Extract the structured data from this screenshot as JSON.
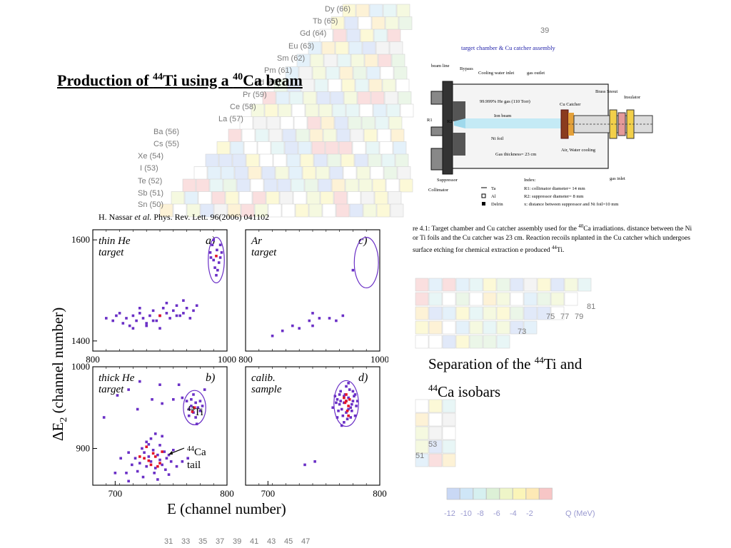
{
  "slide": {
    "title": {
      "prefix": "Production of ",
      "sup1": "44",
      "mid": "Ti using a ",
      "sup2": "40",
      "suffix": "Ca beam"
    },
    "citation": {
      "authors": "H. Nassar ",
      "etal": "et al.",
      "journal": " Phys. Rev. Lett. 96(2006) 041102"
    },
    "separation": {
      "l1a": "Separation of the ",
      "sup1": "44",
      "l1b": "Ti and",
      "sup2": "44",
      "l2b": "Ca  isobars"
    }
  },
  "nuclide_chart": {
    "element_labels": [
      "Dy (66)",
      "Tb (65)",
      "Gd (64)",
      "Eu (63)",
      "Sm (62)",
      "Pm (61)",
      "Nd (60)",
      "Pr (59)",
      "Ce (58)",
      "La (57)",
      "Ba (56)",
      "Cs (55)",
      "Xe (54)",
      "I (53)",
      "Te (52)",
      "Sb (51)",
      "Sn (50)"
    ],
    "number_labels_top": [
      "39"
    ],
    "number_labels_right": [
      "75",
      "77",
      "79",
      "81",
      "73"
    ],
    "number_labels_bottom": [
      "31",
      "33",
      "35",
      "37",
      "39",
      "41",
      "43",
      "45",
      "47"
    ],
    "number_labels_left": [
      "53",
      "51"
    ],
    "legend_labels": [
      "-12",
      "-10",
      "-8",
      "-6",
      "-4",
      "-2",
      "Q (MeV)"
    ],
    "legend_colors": [
      "#c9d8f5",
      "#cfe6f7",
      "#d6f0f0",
      "#dcf0d6",
      "#eef5c8",
      "#fbf5b8",
      "#fde9b5",
      "#f7c6c6"
    ]
  },
  "apparatus": {
    "title": "target chamber & Cu catcher assembly",
    "labels": {
      "beam_line": "beam line",
      "bypass": "Bypass",
      "cooling": "Cooling water inlet",
      "gas_outlet": "gas outlet",
      "brass": "Brass Snout",
      "insulator": "Insulator",
      "he_gas": "99.999% He gas (110 Torr)",
      "cu_catcher": "Cu Catcher",
      "ion_beam": "Ion beam",
      "r1": "R1",
      "r2": "R2",
      "ni_foil": "Ni foil",
      "air_water": "Air, Water cooling",
      "gas_thickness": "Gas thickness= 23 cm",
      "suppressor": "Suppressor",
      "collimator": "Collimator",
      "index": "Index:",
      "gas_inlet": "gas inlet"
    },
    "index_items": [
      {
        "mat": "Ta",
        "desc": "R1: collimator diameter= 14 mm"
      },
      {
        "mat": "Al",
        "desc": "R2: suppressor diameter= 8 mm"
      },
      {
        "mat": "Delrin",
        "desc": "x: distance between suppressor and Ni foil=10 mm"
      }
    ]
  },
  "caption": {
    "label": "re 4.1:",
    "t1": "  Target chamber and Cu catcher assembly used for the ",
    "sup1": "40",
    "t2": "Ca irradiations. distance between the Ni or Ti foils and the Cu catcher was 23 cm.  Reaction recoils nplanted in the Cu catcher which undergoes surface etching for chemical extraction e produced ",
    "sup2": "44",
    "t3": "Ti."
  },
  "chart_data": [
    {
      "type": "scatter",
      "panel": "a)",
      "title": "thin He target",
      "xlim": [
        800,
        1000
      ],
      "ylim": [
        1380,
        1620
      ],
      "xticks": [
        800,
        1000
      ],
      "yticks": [
        1400,
        1600
      ],
      "series": [
        {
          "color": "#6a2fc6",
          "points": [
            [
              820,
              1445
            ],
            [
              830,
              1440
            ],
            [
              835,
              1450
            ],
            [
              845,
              1435
            ],
            [
              850,
              1445
            ],
            [
              855,
              1430
            ],
            [
              860,
              1450
            ],
            [
              865,
              1440
            ],
            [
              870,
              1455
            ],
            [
              875,
              1445
            ],
            [
              880,
              1435
            ],
            [
              885,
              1450
            ],
            [
              890,
              1460
            ],
            [
              895,
              1440
            ],
            [
              900,
              1450
            ],
            [
              905,
              1465
            ],
            [
              910,
              1455
            ],
            [
              915,
              1445
            ],
            [
              920,
              1460
            ],
            [
              925,
              1470
            ],
            [
              930,
              1450
            ],
            [
              935,
              1455
            ],
            [
              940,
              1465
            ],
            [
              945,
              1445
            ],
            [
              950,
              1460
            ],
            [
              860,
              1425
            ],
            [
              880,
              1430
            ],
            [
              900,
              1425
            ],
            [
              955,
              1470
            ],
            [
              840,
              1455
            ],
            [
              870,
              1465
            ],
            [
              910,
              1475
            ],
            [
              890,
              1440
            ],
            [
              925,
              1450
            ],
            [
              935,
              1480
            ],
            [
              975,
              1575
            ],
            [
              980,
              1560
            ],
            [
              985,
              1580
            ],
            [
              990,
              1565
            ],
            [
              982,
              1545
            ],
            [
              978,
              1590
            ],
            [
              988,
              1555
            ],
            [
              992,
              1575
            ],
            [
              984,
              1530
            ],
            [
              976,
              1565
            ],
            [
              986,
              1540
            ],
            [
              990,
              1590
            ],
            [
              980,
              1600
            ]
          ]
        },
        {
          "color": "#e3142a",
          "points": [
            [
              900,
              1450
            ],
            [
              984,
              1568
            ]
          ]
        }
      ]
    },
    {
      "type": "scatter",
      "panel": "c)",
      "title": "Ar target",
      "xlim": [
        800,
        1000
      ],
      "ylim": [
        1380,
        1620
      ],
      "xticks": [
        800,
        1000
      ],
      "yticks": [],
      "series": [
        {
          "color": "#6a2fc6",
          "points": [
            [
              840,
              1410
            ],
            [
              855,
              1420
            ],
            [
              870,
              1430
            ],
            [
              880,
              1425
            ],
            [
              895,
              1440
            ],
            [
              900,
              1430
            ],
            [
              910,
              1445
            ],
            [
              925,
              1445
            ],
            [
              935,
              1440
            ],
            [
              945,
              1450
            ],
            [
              960,
              1540
            ],
            [
              900,
              1455
            ]
          ]
        }
      ]
    },
    {
      "type": "scatter",
      "panel": "b)",
      "title": "thick He target",
      "xlim": [
        680,
        800
      ],
      "ylim": [
        855,
        1000
      ],
      "xticks": [
        700,
        800
      ],
      "yticks": [
        900,
        1000
      ],
      "annotations": [
        {
          "sup": "44",
          "text": "Ti"
        },
        {
          "sup": "44",
          "text": "Ca"
        },
        {
          "sup": "",
          "text": "tail"
        }
      ],
      "series": [
        {
          "color": "#6a2fc6",
          "points": [
            [
              718,
              888
            ],
            [
              722,
              882
            ],
            [
              726,
              895
            ],
            [
              728,
              878
            ],
            [
              730,
              890
            ],
            [
              732,
              884
            ],
            [
              734,
              898
            ],
            [
              736,
              876
            ],
            [
              738,
              892
            ],
            [
              740,
              886
            ],
            [
              742,
              880
            ],
            [
              744,
              896
            ],
            [
              746,
              888
            ],
            [
              720,
              872
            ],
            [
              724,
              900
            ],
            [
              730,
              905
            ],
            [
              735,
              870
            ],
            [
              740,
              904
            ],
            [
              745,
              874
            ],
            [
              748,
              892
            ],
            [
              750,
              884
            ],
            [
              715,
              880
            ],
            [
              712,
              895
            ],
            [
              725,
              865
            ],
            [
              738,
              862
            ],
            [
              752,
              898
            ],
            [
              732,
              912
            ],
            [
              742,
              915
            ],
            [
              710,
              870
            ],
            [
              755,
              878
            ],
            [
              700,
              870
            ],
            [
              705,
              888
            ],
            [
              760,
              884
            ],
            [
              765,
              888
            ],
            [
              712,
              860
            ],
            [
              748,
              868
            ],
            [
              728,
              908
            ],
            [
              736,
              918
            ],
            [
              690,
              938
            ],
            [
              702,
              965
            ],
            [
              712,
              972
            ],
            [
              722,
              982
            ],
            [
              740,
              978
            ],
            [
              733,
              960
            ],
            [
              752,
              960
            ],
            [
              760,
              962
            ],
            [
              764,
              958
            ],
            [
              766,
              948
            ],
            [
              768,
              952
            ],
            [
              770,
              944
            ],
            [
              772,
              956
            ],
            [
              774,
              950
            ],
            [
              776,
              946
            ],
            [
              768,
              960
            ],
            [
              772,
              938
            ],
            [
              770,
              966
            ],
            [
              766,
              940
            ],
            [
              776,
              958
            ],
            [
              778,
              952
            ],
            [
              773,
              930
            ],
            [
              780,
              972
            ],
            [
              757,
              978
            ],
            [
              742,
              955
            ],
            [
              720,
              948
            ]
          ]
        },
        {
          "color": "#e3142a",
          "points": [
            [
              730,
              885
            ],
            [
              736,
              890
            ],
            [
              740,
              882
            ],
            [
              734,
              894
            ],
            [
              726,
              888
            ],
            [
              742,
              896
            ],
            [
              738,
              878
            ],
            [
              722,
              890
            ],
            [
              732,
              880
            ],
            [
              728,
              902
            ],
            [
              771,
              950
            ],
            [
              769,
              945
            ]
          ]
        }
      ]
    },
    {
      "type": "scatter",
      "panel": "d)",
      "title": "calib. sample",
      "xlim": [
        680,
        800
      ],
      "ylim": [
        855,
        1000
      ],
      "xticks": [
        700,
        800
      ],
      "yticks": [],
      "series": [
        {
          "color": "#6a2fc6",
          "points": [
            [
              762,
              960
            ],
            [
              764,
              954
            ],
            [
              766,
              948
            ],
            [
              768,
              956
            ],
            [
              770,
              944
            ],
            [
              772,
              962
            ],
            [
              774,
              950
            ],
            [
              776,
              958
            ],
            [
              765,
              970
            ],
            [
              767,
              940
            ],
            [
              769,
              966
            ],
            [
              771,
              936
            ],
            [
              773,
              972
            ],
            [
              775,
              946
            ],
            [
              777,
              964
            ],
            [
              763,
              946
            ],
            [
              761,
              956
            ],
            [
              779,
              952
            ],
            [
              770,
              976
            ],
            [
              768,
              932
            ],
            [
              772,
              980
            ],
            [
              766,
              928
            ],
            [
              774,
              938
            ],
            [
              760,
              964
            ],
            [
              778,
              940
            ],
            [
              776,
              970
            ],
            [
              764,
              966
            ],
            [
              770,
              958
            ],
            [
              772,
              948
            ],
            [
              768,
              964
            ],
            [
              775,
              954
            ],
            [
              765,
              958
            ],
            [
              733,
              880
            ],
            [
              742,
              884
            ],
            [
              780,
              958
            ],
            [
              758,
              950
            ],
            [
              762,
              938
            ],
            [
              778,
              966
            ]
          ]
        },
        {
          "color": "#e3142a",
          "points": [
            [
              770,
              958
            ],
            [
              772,
              952
            ],
            [
              768,
              962
            ],
            [
              771,
              946
            ],
            [
              769,
              956
            ],
            [
              773,
              960
            ],
            [
              770,
              966
            ],
            [
              772,
              940
            ]
          ]
        }
      ]
    }
  ],
  "axes": {
    "ylabel_prefix": "ΔE",
    "ylabel_sub": "2",
    "ylabel_suffix": " (channel number)",
    "xlabel": "E (channel number)"
  }
}
